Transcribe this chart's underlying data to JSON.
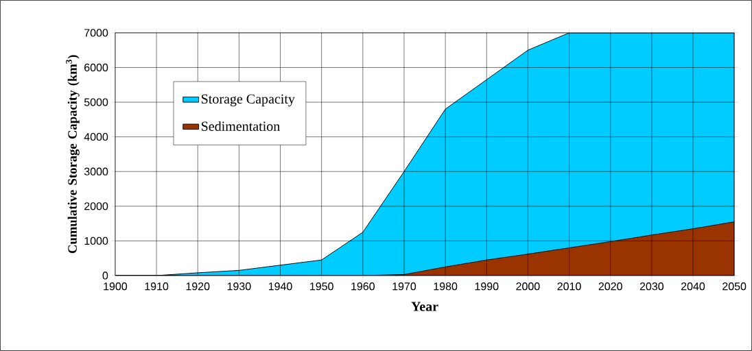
{
  "chart_data": {
    "type": "area",
    "xlabel": "Year",
    "ylabel": "Cumulative Storage Capacity (km$^{3}$)",
    "x": [
      1900,
      1910,
      1920,
      1930,
      1940,
      1950,
      1960,
      1970,
      1980,
      1990,
      2000,
      2010,
      2020,
      2030,
      2040,
      2050
    ],
    "series": [
      {
        "name": "Storage Capacity",
        "color": "#00ccff",
        "values": [
          0,
          0,
          80,
          150,
          300,
          450,
          1250,
          3000,
          4800,
          5650,
          6500,
          7000,
          7000,
          7000,
          7000,
          7000
        ]
      },
      {
        "name": "Sedimentation",
        "color": "#993300",
        "values": [
          0,
          0,
          0,
          0,
          0,
          0,
          0,
          30,
          250,
          450,
          620,
          800,
          980,
          1170,
          1350,
          1550
        ]
      }
    ],
    "xlim": [
      1900,
      2050
    ],
    "xticks": [
      1900,
      1910,
      1920,
      1930,
      1940,
      1950,
      1960,
      1970,
      1980,
      1990,
      2000,
      2010,
      2020,
      2030,
      2040,
      2050
    ],
    "ylim": [
      0,
      7000
    ],
    "yticks": [
      0,
      1000,
      2000,
      3000,
      4000,
      5000,
      6000,
      7000
    ],
    "grid": true,
    "legend": "top left"
  }
}
